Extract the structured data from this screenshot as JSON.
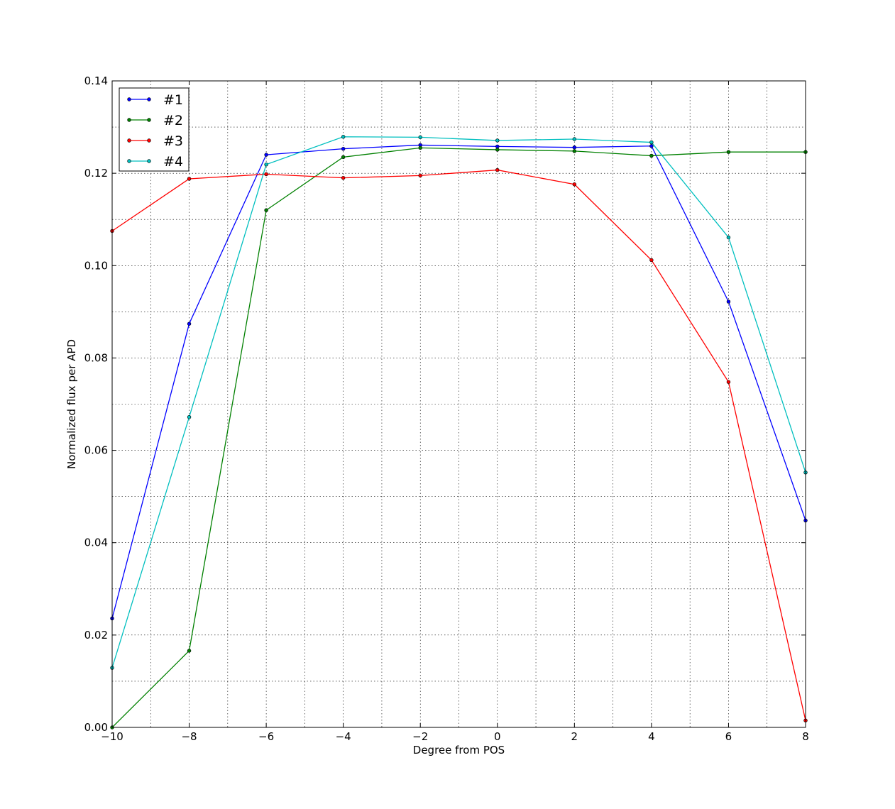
{
  "chart_data": {
    "type": "line",
    "title": "",
    "xlabel": "Degree from POS",
    "ylabel": "Normalized flux per APD",
    "xlim": [
      -10,
      8
    ],
    "ylim": [
      0.0,
      0.14
    ],
    "xticks": [
      -10,
      -8,
      -6,
      -4,
      -2,
      0,
      2,
      4,
      6,
      8
    ],
    "xtick_labels": [
      "−10",
      "−8",
      "−6",
      "−4",
      "−2",
      "0",
      "2",
      "4",
      "6",
      "8"
    ],
    "yticks": [
      0.0,
      0.02,
      0.04,
      0.06,
      0.08,
      0.1,
      0.12,
      0.14
    ],
    "ytick_labels": [
      "0.00",
      "0.02",
      "0.04",
      "0.06",
      "0.08",
      "0.10",
      "0.12",
      "0.14"
    ],
    "grid": "dotted, major and minor",
    "legend_position": "upper-left",
    "x": [
      -10,
      -8,
      -6,
      -4,
      -2,
      0,
      2,
      4,
      6,
      8
    ],
    "series": [
      {
        "name": "#1",
        "color": "#0000ff",
        "values": [
          0.0236,
          0.0874,
          0.124,
          0.1253,
          0.1261,
          0.1258,
          0.1256,
          0.1259,
          0.0922,
          0.0448
        ]
      },
      {
        "name": "#2",
        "color": "#008000",
        "values": [
          0.0,
          0.0166,
          0.112,
          0.1235,
          0.1255,
          0.1251,
          0.1248,
          0.1238,
          0.1246,
          0.1246
        ]
      },
      {
        "name": "#3",
        "color": "#ff0000",
        "values": [
          0.1075,
          0.1188,
          0.1198,
          0.119,
          0.1195,
          0.1207,
          0.1176,
          0.1012,
          0.0748,
          0.0015
        ]
      },
      {
        "name": "#4",
        "color": "#00bfbf",
        "values": [
          0.0129,
          0.0672,
          0.1219,
          0.1279,
          0.1278,
          0.1271,
          0.1274,
          0.1267,
          0.1061,
          0.0552
        ]
      }
    ]
  }
}
